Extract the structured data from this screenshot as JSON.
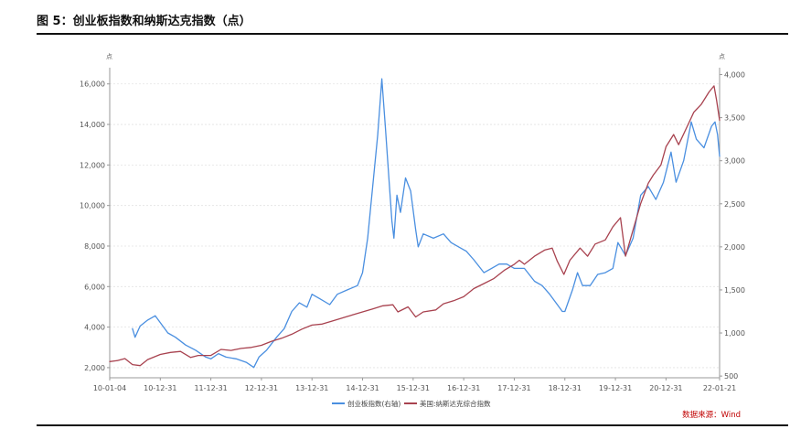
{
  "figure": {
    "title": "图 5：创业板指数和纳斯达克指数（点）",
    "source": "数据来源：Wind"
  },
  "chart_data": {
    "type": "line",
    "y_left": {
      "unit": "点",
      "ticks": [
        "2,000",
        "4,000",
        "6,000",
        "8,000",
        "10,000",
        "12,000",
        "14,000",
        "16,000"
      ],
      "range": [
        1500,
        16800
      ]
    },
    "y_right": {
      "unit": "点",
      "ticks": [
        "500",
        "1,000",
        "1,500",
        "2,000",
        "2,500",
        "3,000",
        "3,500",
        "4,000"
      ],
      "range": [
        480,
        4080
      ]
    },
    "x_ticks": [
      "10-01-04",
      "10-12-31",
      "11-12-31",
      "12-12-31",
      "13-12-31",
      "14-12-31",
      "15-12-31",
      "16-12-31",
      "17-12-31",
      "18-12-31",
      "19-12-31",
      "20-12-31",
      "22-01-21"
    ],
    "x_range": [
      2010.0,
      2022.06
    ],
    "grid": true,
    "legend_position": "bottom",
    "colors": {
      "chinext": "#4a8fe0",
      "nasdaq": "#a8424f"
    },
    "series": [
      {
        "name": "创业板指数(右轴)",
        "axis": "right",
        "color": "#4a8fe0",
        "points": [
          [
            2010.45,
            1050
          ],
          [
            2010.5,
            950
          ],
          [
            2010.6,
            1080
          ],
          [
            2010.75,
            1150
          ],
          [
            2010.9,
            1200
          ],
          [
            2011.0,
            1120
          ],
          [
            2011.15,
            1000
          ],
          [
            2011.3,
            950
          ],
          [
            2011.5,
            860
          ],
          [
            2011.7,
            800
          ],
          [
            2011.9,
            720
          ],
          [
            2012.0,
            700
          ],
          [
            2012.15,
            760
          ],
          [
            2012.3,
            720
          ],
          [
            2012.5,
            700
          ],
          [
            2012.7,
            660
          ],
          [
            2012.85,
            600
          ],
          [
            2012.95,
            720
          ],
          [
            2013.1,
            800
          ],
          [
            2013.3,
            950
          ],
          [
            2013.45,
            1050
          ],
          [
            2013.6,
            1250
          ],
          [
            2013.75,
            1350
          ],
          [
            2013.9,
            1300
          ],
          [
            2014.0,
            1450
          ],
          [
            2014.15,
            1400
          ],
          [
            2014.35,
            1330
          ],
          [
            2014.5,
            1450
          ],
          [
            2014.7,
            1500
          ],
          [
            2014.9,
            1550
          ],
          [
            2015.0,
            1700
          ],
          [
            2015.1,
            2100
          ],
          [
            2015.2,
            2700
          ],
          [
            2015.3,
            3300
          ],
          [
            2015.38,
            3950
          ],
          [
            2015.45,
            3400
          ],
          [
            2015.52,
            2800
          ],
          [
            2015.58,
            2300
          ],
          [
            2015.62,
            2100
          ],
          [
            2015.68,
            2600
          ],
          [
            2015.75,
            2400
          ],
          [
            2015.85,
            2800
          ],
          [
            2015.95,
            2650
          ],
          [
            2016.05,
            2200
          ],
          [
            2016.1,
            2000
          ],
          [
            2016.2,
            2150
          ],
          [
            2016.4,
            2100
          ],
          [
            2016.6,
            2150
          ],
          [
            2016.75,
            2050
          ],
          [
            2016.9,
            2000
          ],
          [
            2017.05,
            1950
          ],
          [
            2017.2,
            1850
          ],
          [
            2017.4,
            1700
          ],
          [
            2017.55,
            1750
          ],
          [
            2017.7,
            1800
          ],
          [
            2017.85,
            1800
          ],
          [
            2018.0,
            1750
          ],
          [
            2018.2,
            1750
          ],
          [
            2018.4,
            1600
          ],
          [
            2018.55,
            1550
          ],
          [
            2018.7,
            1450
          ],
          [
            2018.85,
            1330
          ],
          [
            2018.95,
            1250
          ],
          [
            2019.0,
            1250
          ],
          [
            2019.15,
            1500
          ],
          [
            2019.25,
            1700
          ],
          [
            2019.35,
            1550
          ],
          [
            2019.5,
            1550
          ],
          [
            2019.65,
            1680
          ],
          [
            2019.8,
            1700
          ],
          [
            2019.95,
            1750
          ],
          [
            2020.05,
            2050
          ],
          [
            2020.2,
            1900
          ],
          [
            2020.35,
            2100
          ],
          [
            2020.5,
            2600
          ],
          [
            2020.65,
            2700
          ],
          [
            2020.8,
            2550
          ],
          [
            2020.95,
            2750
          ],
          [
            2021.1,
            3100
          ],
          [
            2021.2,
            2750
          ],
          [
            2021.35,
            3000
          ],
          [
            2021.5,
            3450
          ],
          [
            2021.6,
            3250
          ],
          [
            2021.75,
            3150
          ],
          [
            2021.9,
            3400
          ],
          [
            2021.97,
            3450
          ],
          [
            2022.02,
            3300
          ],
          [
            2022.06,
            3050
          ]
        ]
      },
      {
        "name": "美国:纳斯达克综合指数",
        "axis": "left",
        "color": "#a8424f",
        "points": [
          [
            2010.0,
            2300
          ],
          [
            2010.15,
            2350
          ],
          [
            2010.3,
            2450
          ],
          [
            2010.45,
            2150
          ],
          [
            2010.6,
            2100
          ],
          [
            2010.75,
            2400
          ],
          [
            2011.0,
            2650
          ],
          [
            2011.2,
            2750
          ],
          [
            2011.4,
            2800
          ],
          [
            2011.6,
            2500
          ],
          [
            2011.75,
            2600
          ],
          [
            2012.0,
            2600
          ],
          [
            2012.2,
            2900
          ],
          [
            2012.4,
            2850
          ],
          [
            2012.6,
            2950
          ],
          [
            2012.8,
            3000
          ],
          [
            2013.0,
            3100
          ],
          [
            2013.2,
            3300
          ],
          [
            2013.4,
            3450
          ],
          [
            2013.6,
            3650
          ],
          [
            2013.8,
            3900
          ],
          [
            2014.0,
            4100
          ],
          [
            2014.2,
            4150
          ],
          [
            2014.4,
            4300
          ],
          [
            2014.6,
            4450
          ],
          [
            2014.8,
            4600
          ],
          [
            2015.0,
            4750
          ],
          [
            2015.2,
            4900
          ],
          [
            2015.4,
            5050
          ],
          [
            2015.6,
            5100
          ],
          [
            2015.7,
            4750
          ],
          [
            2015.9,
            5000
          ],
          [
            2016.05,
            4500
          ],
          [
            2016.2,
            4750
          ],
          [
            2016.45,
            4850
          ],
          [
            2016.6,
            5150
          ],
          [
            2016.8,
            5300
          ],
          [
            2017.0,
            5500
          ],
          [
            2017.2,
            5900
          ],
          [
            2017.4,
            6150
          ],
          [
            2017.6,
            6400
          ],
          [
            2017.8,
            6800
          ],
          [
            2018.0,
            7100
          ],
          [
            2018.1,
            7300
          ],
          [
            2018.2,
            7100
          ],
          [
            2018.4,
            7500
          ],
          [
            2018.6,
            7800
          ],
          [
            2018.75,
            7900
          ],
          [
            2018.85,
            7250
          ],
          [
            2018.98,
            6600
          ],
          [
            2019.1,
            7300
          ],
          [
            2019.3,
            7900
          ],
          [
            2019.45,
            7500
          ],
          [
            2019.6,
            8100
          ],
          [
            2019.8,
            8300
          ],
          [
            2019.95,
            8950
          ],
          [
            2020.1,
            9400
          ],
          [
            2020.2,
            7500
          ],
          [
            2020.35,
            8800
          ],
          [
            2020.5,
            10100
          ],
          [
            2020.65,
            11100
          ],
          [
            2020.75,
            11500
          ],
          [
            2020.9,
            12000
          ],
          [
            2021.0,
            12900
          ],
          [
            2021.15,
            13500
          ],
          [
            2021.25,
            13000
          ],
          [
            2021.4,
            13800
          ],
          [
            2021.55,
            14600
          ],
          [
            2021.7,
            15000
          ],
          [
            2021.85,
            15600
          ],
          [
            2021.95,
            15900
          ],
          [
            2022.0,
            15200
          ],
          [
            2022.06,
            14200
          ]
        ]
      }
    ]
  }
}
